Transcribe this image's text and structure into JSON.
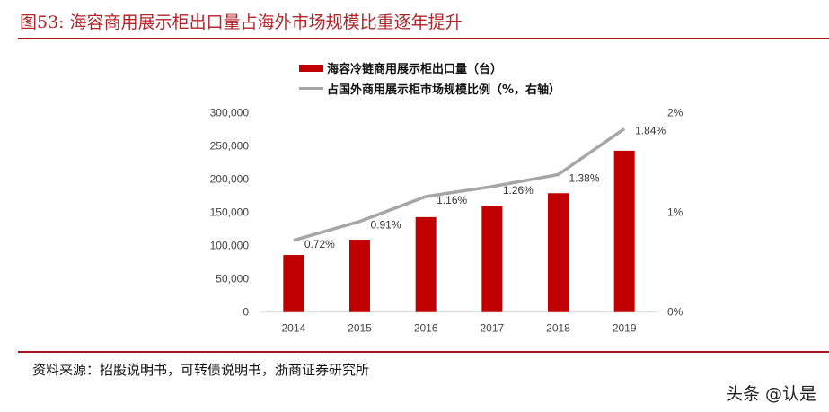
{
  "title": "图53:  海容商用展示柜出口量占海外市场规模比重逐年提升",
  "source": "资料来源：招股说明书，可转债说明书，浙商证券研究所",
  "watermark": "头条 @认是",
  "chart_data": {
    "type": "bar+line",
    "categories": [
      "2014",
      "2015",
      "2016",
      "2017",
      "2018",
      "2019"
    ],
    "series": [
      {
        "name": "海容冷链商用展示柜出口量（台）",
        "type": "bar",
        "axis": "left",
        "color": "#c00000",
        "values": [
          86000,
          109000,
          143000,
          160000,
          179000,
          243000
        ]
      },
      {
        "name": "占国外商用展示柜市场规模比例（%，右轴）",
        "type": "line",
        "axis": "right",
        "color": "#a6a6a6",
        "values": [
          0.72,
          0.91,
          1.16,
          1.26,
          1.38,
          1.84
        ],
        "labels": [
          "0.72%",
          "0.91%",
          "1.16%",
          "1.26%",
          "1.38%",
          "1.84%"
        ]
      }
    ],
    "ylim_left": [
      0,
      300000
    ],
    "yticks_left": [
      "0",
      "50,000",
      "100,000",
      "150,000",
      "200,000",
      "250,000",
      "300,000"
    ],
    "ylim_right": [
      0,
      2
    ],
    "yticks_right": [
      "0%",
      "1%",
      "2%"
    ],
    "legend": "top",
    "grid": false
  }
}
